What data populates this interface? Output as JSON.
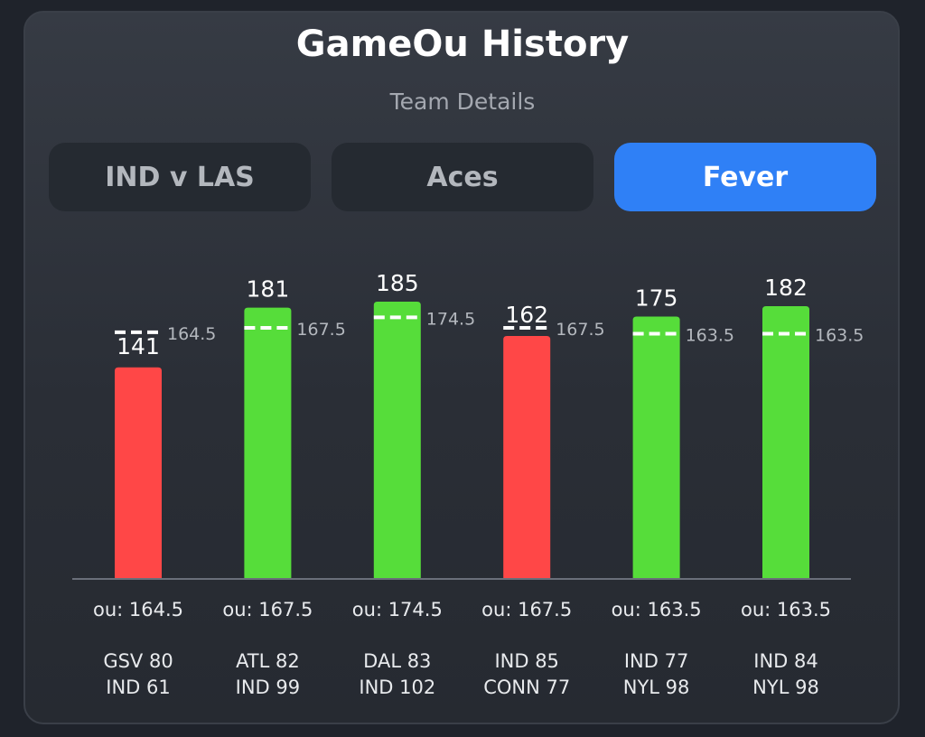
{
  "header": {
    "title": "GameOu History",
    "subtitle": "Team Details"
  },
  "tabs": [
    {
      "label": "IND v LAS",
      "active": false
    },
    {
      "label": "Aces",
      "active": false
    },
    {
      "label": "Fever",
      "active": true
    }
  ],
  "colors": {
    "over": "#56dd3a",
    "under": "#ff4747",
    "accent": "#2f80f6"
  },
  "chart_data": {
    "type": "bar",
    "categories": [
      "GSV 80 / IND 61",
      "ATL 82 / IND 99",
      "DAL 83 / IND 102",
      "IND 85 / CONN 77",
      "IND 77 / NYL 98",
      "IND 84 / NYL 98"
    ],
    "values": [
      141,
      181,
      185,
      162,
      175,
      182
    ],
    "ou_lines": [
      164.5,
      167.5,
      174.5,
      167.5,
      163.5,
      163.5
    ],
    "ou_labels": [
      "164.5",
      "167.5",
      "174.5",
      "167.5",
      "163.5",
      "163.5"
    ],
    "value_labels": [
      "141",
      "181",
      "185",
      "162",
      "175",
      "182"
    ],
    "ou_text": [
      "ou: 164.5",
      "ou: 167.5",
      "ou: 174.5",
      "ou: 167.5",
      "ou: 163.5",
      "ou: 163.5"
    ],
    "scores": [
      [
        "GSV 80",
        "IND 61"
      ],
      [
        "ATL 82",
        "IND 99"
      ],
      [
        "DAL 83",
        "IND 102"
      ],
      [
        "IND 85",
        "CONN 77"
      ],
      [
        "IND 77",
        "NYL 98"
      ],
      [
        "IND 84",
        "NYL 98"
      ]
    ],
    "ylim": [
      0,
      185
    ],
    "grid": false,
    "title": "",
    "xlabel": "",
    "ylabel": ""
  }
}
